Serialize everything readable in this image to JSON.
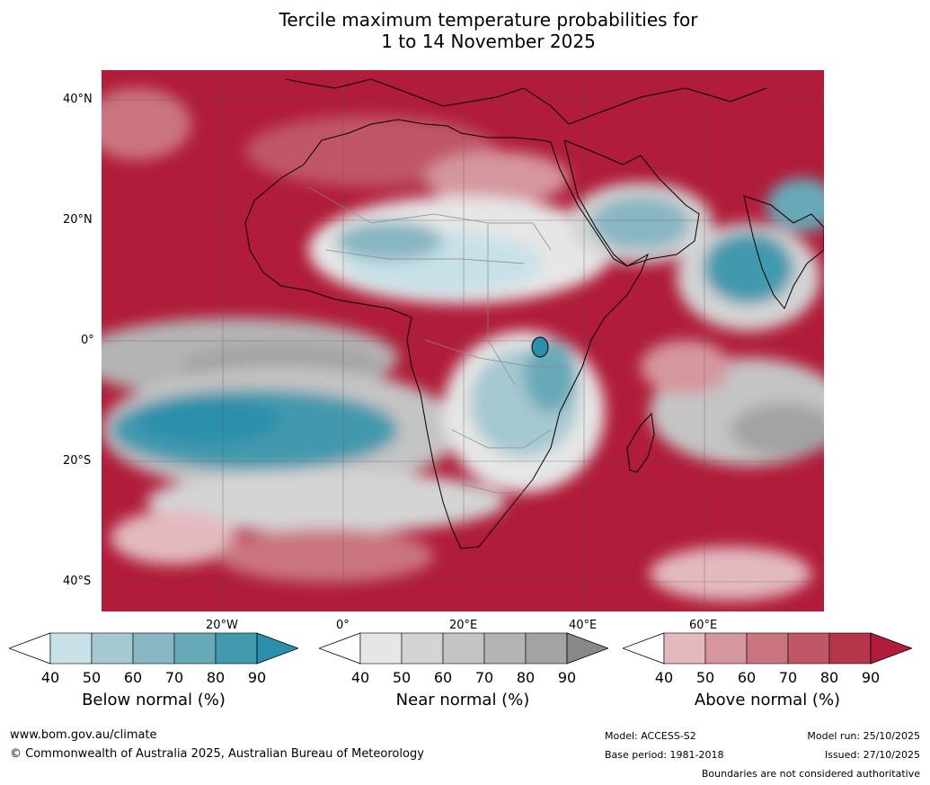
{
  "title_line1": "Tercile maximum temperature probabilities for",
  "title_line2": "1 to 14 November 2025",
  "latitudes": [
    "40°N",
    "20°N",
    "0°",
    "20°S",
    "40°S"
  ],
  "longitudes": [
    "20°W",
    "0°",
    "20°E",
    "40°E",
    "60°E"
  ],
  "legends": [
    {
      "title": "Below normal (%)",
      "ticks": [
        "40",
        "50",
        "60",
        "70",
        "80",
        "90"
      ],
      "colors": [
        "#ffffff",
        "#c8e1e8",
        "#a6c8d0",
        "#88b6c2",
        "#68a9b8",
        "#4399ad",
        "#2b8fab"
      ]
    },
    {
      "title": "Near normal (%)",
      "ticks": [
        "40",
        "50",
        "60",
        "70",
        "80",
        "90"
      ],
      "colors": [
        "#ffffff",
        "#e6e6e6",
        "#d4d4d4",
        "#c4c4c4",
        "#b4b4b4",
        "#a3a3a3",
        "#888888"
      ]
    },
    {
      "title": "Above normal (%)",
      "ticks": [
        "40",
        "50",
        "60",
        "70",
        "80",
        "90"
      ],
      "colors": [
        "#ffffff",
        "#e3b9bf",
        "#d5969e",
        "#ca747f",
        "#c05766",
        "#b5354a",
        "#b01c39"
      ]
    }
  ],
  "footer": {
    "website": "www.bom.gov.au/climate",
    "copyright": "© Commonwealth of Australia 2025, Australian Bureau of Meteorology",
    "model": "Model: ACCESS-S2",
    "base_period": "Base period: 1981-2018",
    "model_run": "Model run: 25/10/2025",
    "issued": "Issued: 27/10/2025",
    "disclaimer": "Boundaries are not considered authoritative"
  }
}
